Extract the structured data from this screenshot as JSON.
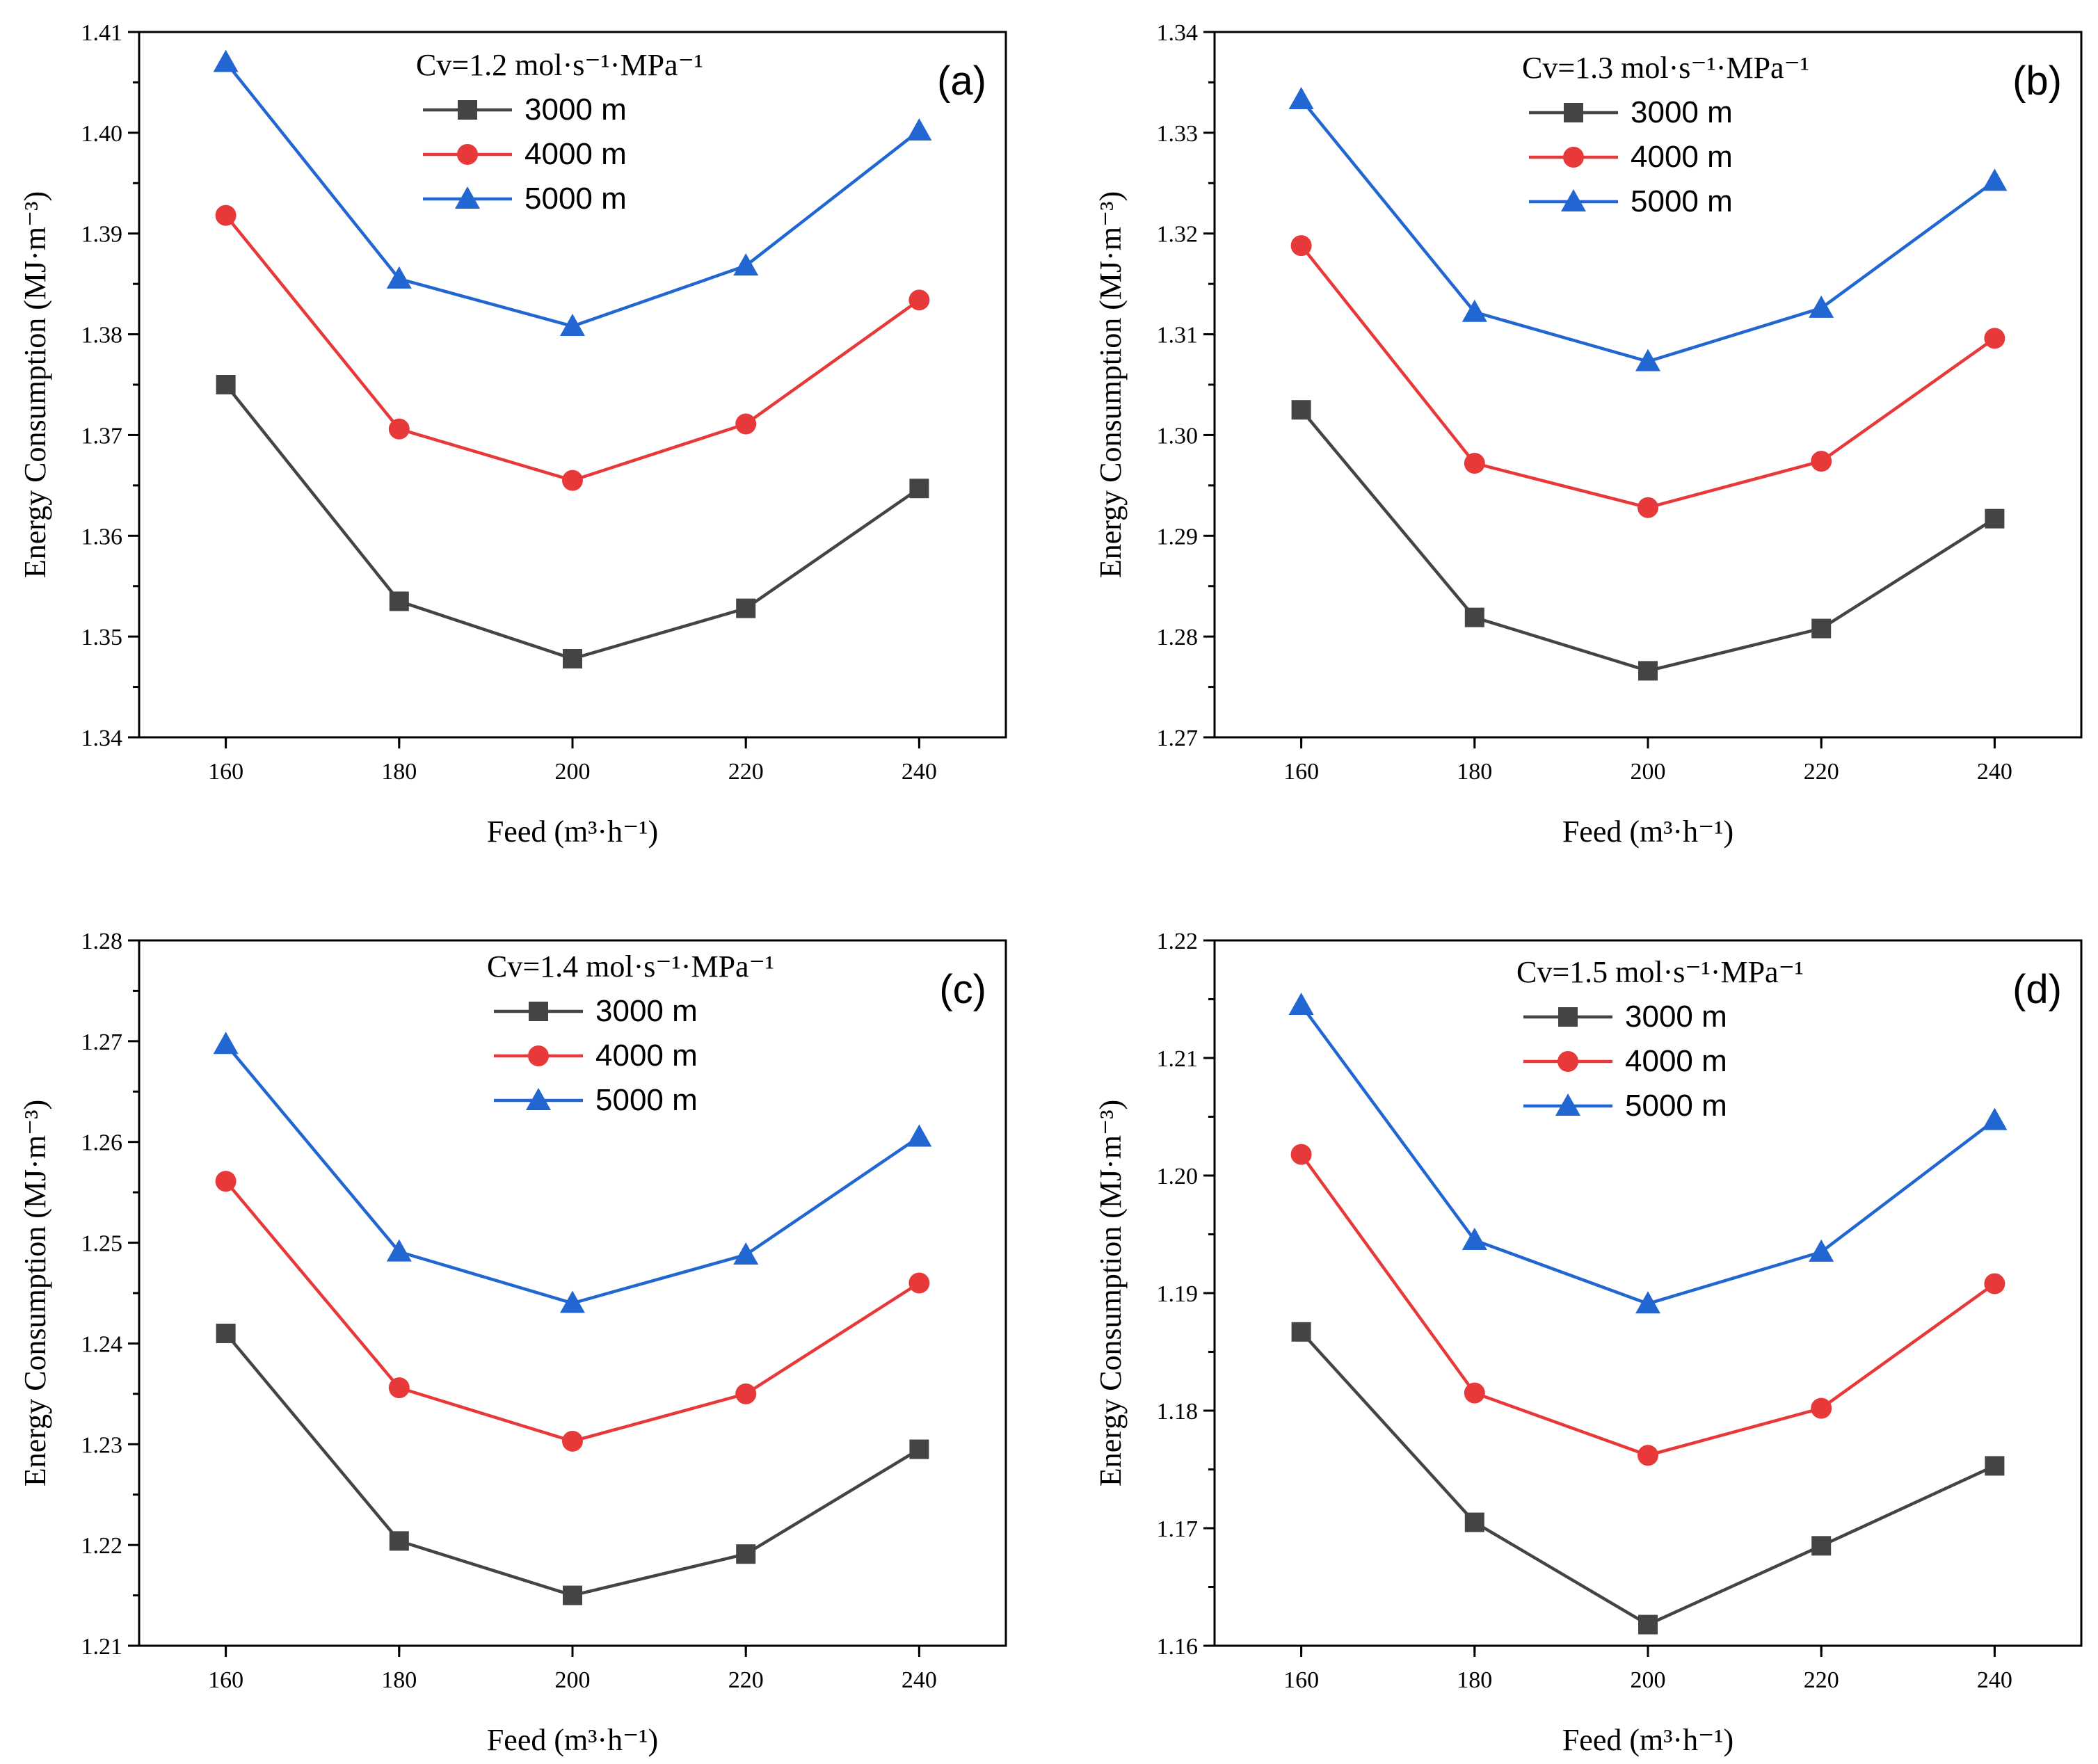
{
  "figure": {
    "series_names": [
      "3000 m",
      "4000 m",
      "5000 m"
    ],
    "colors": {
      "3000 m": "#444444",
      "4000 m": "#e8393a",
      "5000 m": "#2166d1"
    },
    "markers": {
      "3000 m": "square",
      "4000 m": "circle",
      "5000 m": "triangle"
    }
  },
  "chart_data": [
    {
      "panel": "(a)",
      "type": "line",
      "legend_title": "Cv=1.2 mol·s⁻¹·MPa⁻¹",
      "xlabel": "Feed (m³·h⁻¹)",
      "ylabel": "Energy Consumption (MJ·m⁻³)",
      "x": [
        160,
        180,
        200,
        220,
        240
      ],
      "x_ticks": [
        "160",
        "180",
        "200",
        "220",
        "240"
      ],
      "xlim": [
        150,
        250
      ],
      "ylim": [
        1.34,
        1.41
      ],
      "y_ticks": [
        "1.34",
        "1.35",
        "1.36",
        "1.37",
        "1.38",
        "1.39",
        "1.40",
        "1.41"
      ],
      "series": [
        {
          "name": "3000 m",
          "values": [
            1.375,
            1.3535,
            1.3478,
            1.3528,
            1.3647
          ]
        },
        {
          "name": "4000 m",
          "values": [
            1.3918,
            1.3706,
            1.3655,
            1.3711,
            1.3834
          ]
        },
        {
          "name": "5000 m",
          "values": [
            1.407,
            1.3855,
            1.3808,
            1.3868,
            1.4002
          ]
        }
      ]
    },
    {
      "panel": "(b)",
      "type": "line",
      "legend_title": "Cv=1.3 mol·s⁻¹·MPa⁻¹",
      "xlabel": "Feed (m³·h⁻¹)",
      "ylabel": "Energy Consumption (MJ·m⁻³)",
      "x": [
        160,
        180,
        200,
        220,
        240
      ],
      "x_ticks": [
        "160",
        "180",
        "200",
        "220",
        "240"
      ],
      "xlim": [
        150,
        250
      ],
      "ylim": [
        1.27,
        1.34
      ],
      "y_ticks": [
        "1.27",
        "1.28",
        "1.29",
        "1.30",
        "1.31",
        "1.32",
        "1.33",
        "1.34"
      ],
      "series": [
        {
          "name": "3000 m",
          "values": [
            1.3025,
            1.2819,
            1.2766,
            1.2808,
            1.2917
          ]
        },
        {
          "name": "4000 m",
          "values": [
            1.3188,
            1.2972,
            1.2928,
            1.2974,
            1.3096
          ]
        },
        {
          "name": "5000 m",
          "values": [
            1.3333,
            1.3122,
            1.3073,
            1.3126,
            1.3252
          ]
        }
      ]
    },
    {
      "panel": "(c)",
      "type": "line",
      "legend_title": "Cv=1.4 mol·s⁻¹·MPa⁻¹",
      "xlabel": "Feed (m³·h⁻¹)",
      "ylabel": "Energy Consumption (MJ·m⁻³)",
      "x": [
        160,
        180,
        200,
        220,
        240
      ],
      "x_ticks": [
        "160",
        "180",
        "200",
        "220",
        "240"
      ],
      "xlim": [
        150,
        250
      ],
      "ylim": [
        1.21,
        1.28
      ],
      "y_ticks": [
        "1.21",
        "1.22",
        "1.23",
        "1.24",
        "1.25",
        "1.26",
        "1.27",
        "1.28"
      ],
      "series": [
        {
          "name": "3000 m",
          "values": [
            1.241,
            1.2204,
            1.215,
            1.2191,
            1.2295
          ]
        },
        {
          "name": "4000 m",
          "values": [
            1.2561,
            1.2356,
            1.2303,
            1.235,
            1.246
          ]
        },
        {
          "name": "5000 m",
          "values": [
            1.2697,
            1.2491,
            1.244,
            1.2488,
            1.2605
          ]
        }
      ]
    },
    {
      "panel": "(d)",
      "type": "line",
      "legend_title": "Cv=1.5 mol·s⁻¹·MPa⁻¹",
      "xlabel": "Feed (m³·h⁻¹)",
      "ylabel": "Energy Consumption (MJ·m⁻³)",
      "x": [
        160,
        180,
        200,
        220,
        240
      ],
      "x_ticks": [
        "160",
        "180",
        "200",
        "220",
        "240"
      ],
      "xlim": [
        150,
        250
      ],
      "ylim": [
        1.16,
        1.22
      ],
      "y_ticks": [
        "1.16",
        "1.17",
        "1.18",
        "1.19",
        "1.20",
        "1.21",
        "1.22"
      ],
      "series": [
        {
          "name": "3000 m",
          "values": [
            1.1867,
            1.1705,
            1.1618,
            1.1685,
            1.1753
          ]
        },
        {
          "name": "4000 m",
          "values": [
            1.2018,
            1.1815,
            1.1762,
            1.1802,
            1.1908
          ]
        },
        {
          "name": "5000 m",
          "values": [
            1.2145,
            1.1945,
            1.1891,
            1.1935,
            1.2047
          ]
        }
      ]
    }
  ]
}
